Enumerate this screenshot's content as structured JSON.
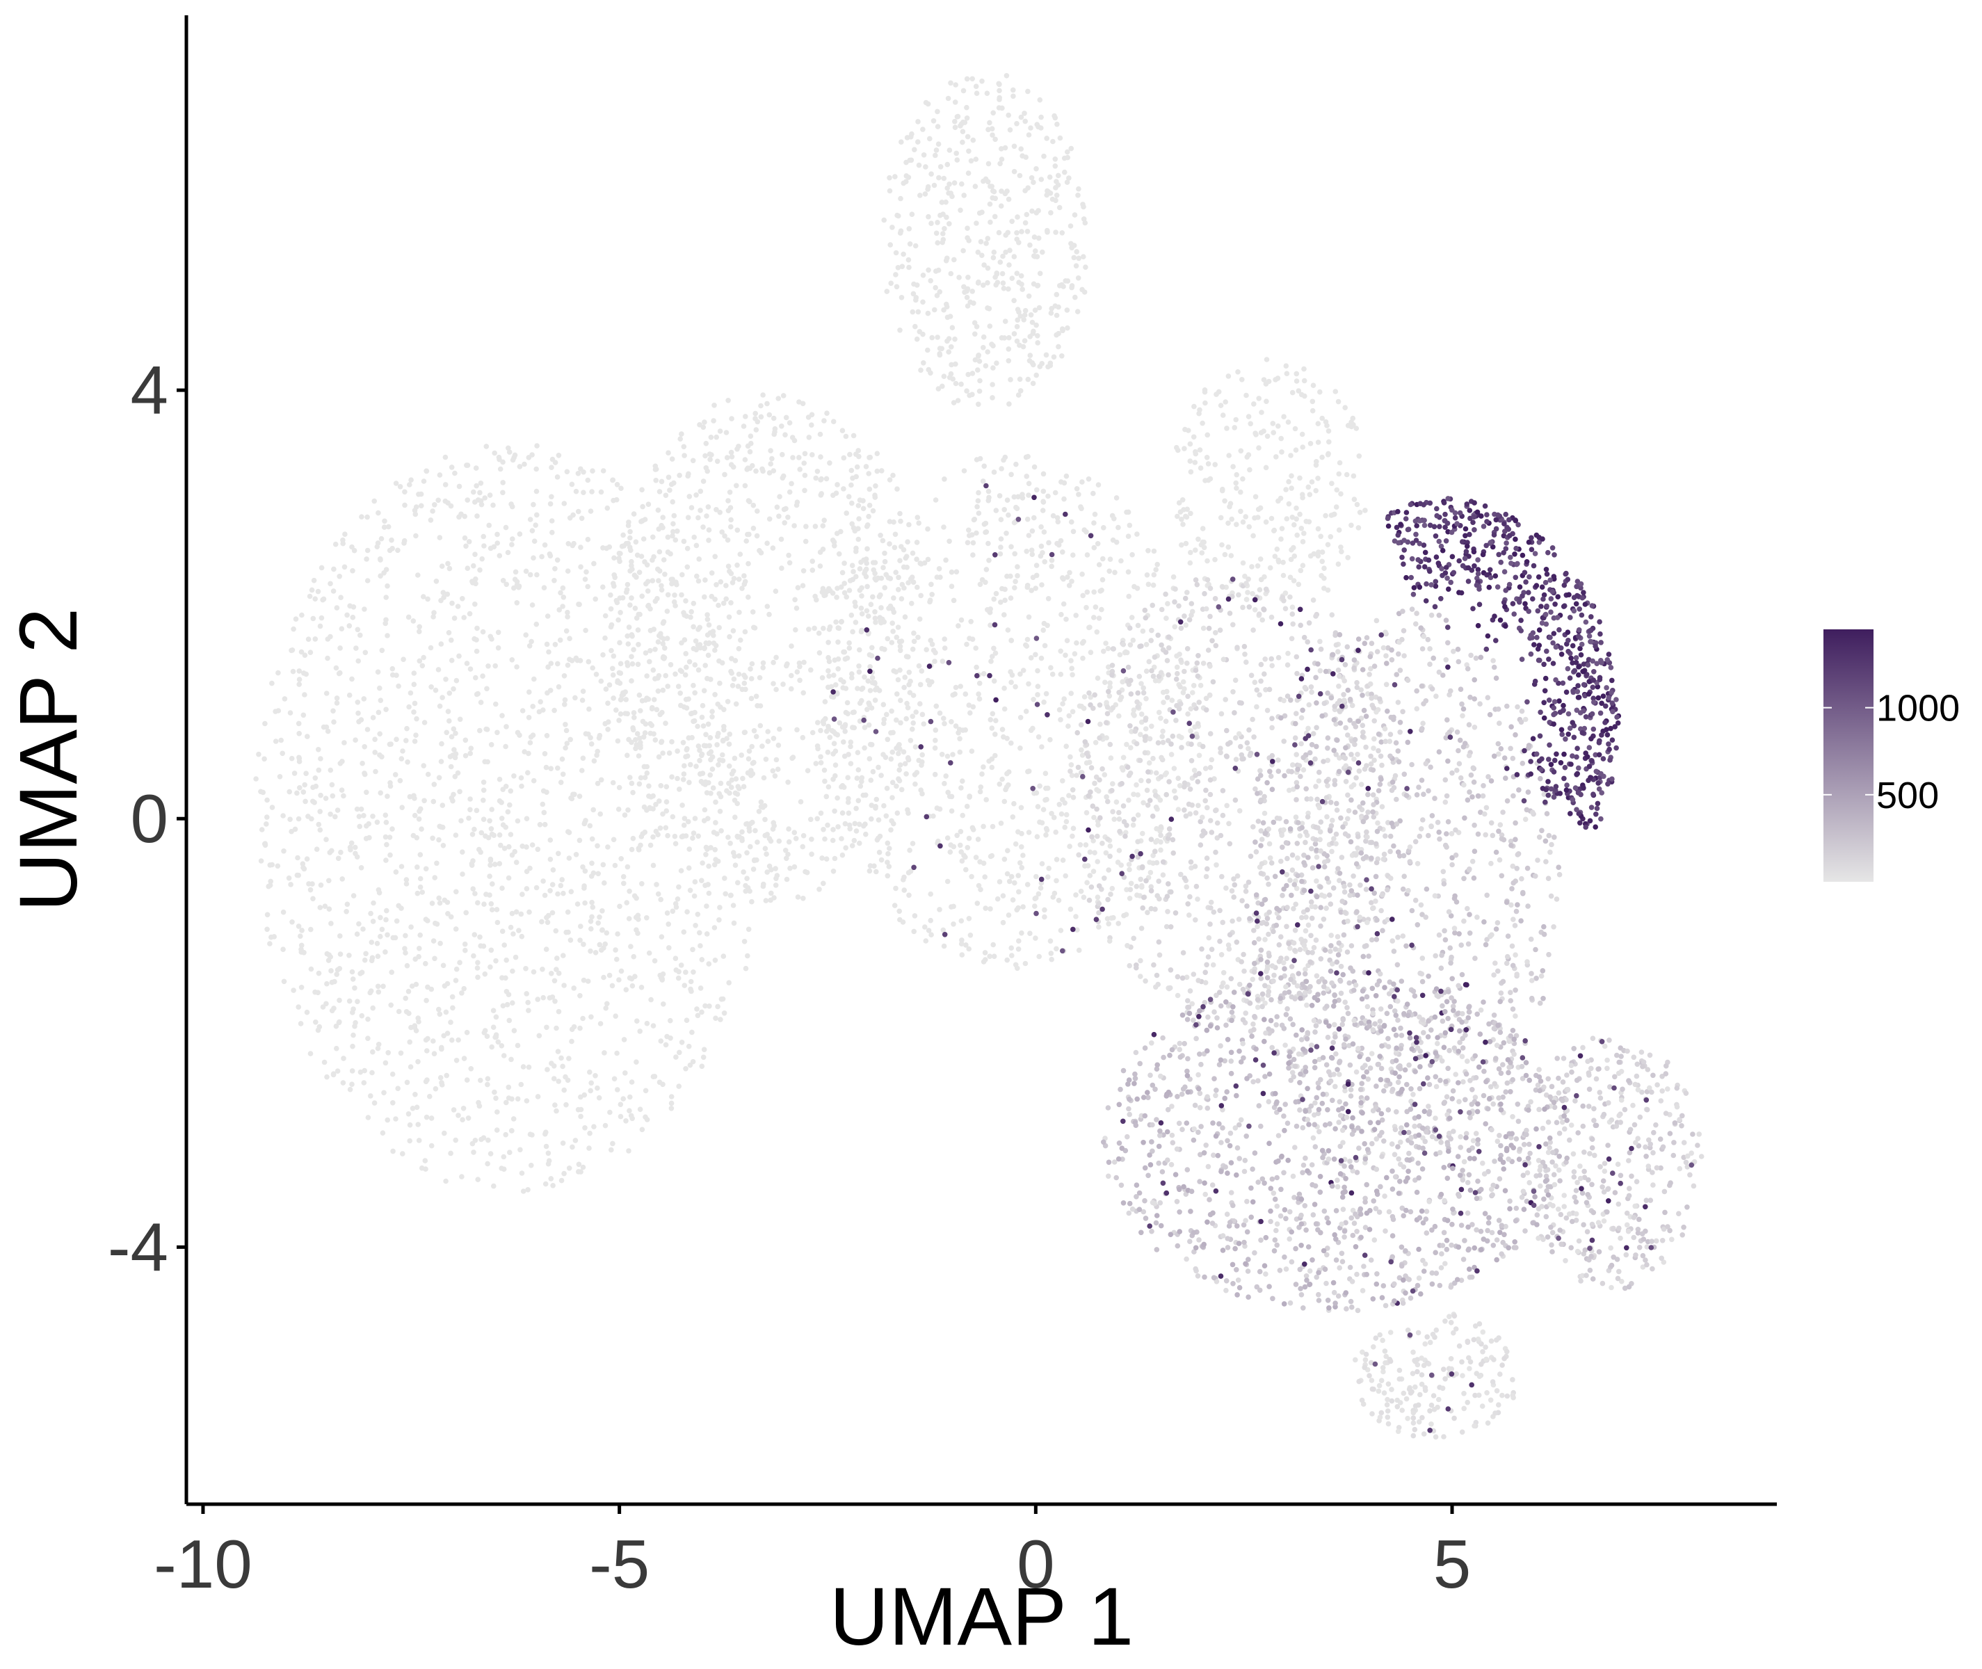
{
  "chart_data": {
    "type": "scatter",
    "title": "",
    "xlabel": "UMAP 1",
    "ylabel": "UMAP 2",
    "xlim": [
      -10.2,
      8.9
    ],
    "ylim": [
      -6.4,
      7.5
    ],
    "x_ticks": [
      {
        "value": -10,
        "label": "-10"
      },
      {
        "value": -5,
        "label": "-5"
      },
      {
        "value": 0,
        "label": "0"
      },
      {
        "value": 5,
        "label": "5"
      }
    ],
    "y_ticks": [
      {
        "value": -4,
        "label": "-4"
      },
      {
        "value": 0,
        "label": "0"
      },
      {
        "value": 4,
        "label": "4"
      }
    ],
    "grid": false,
    "legend_position": "right",
    "color_scale": {
      "low_color": "#e6e6e6",
      "high_color": "#3f1e5e",
      "min": 0,
      "max": 1450,
      "ticks": [
        {
          "value": 500,
          "label": "500"
        },
        {
          "value": 1000,
          "label": "1000"
        }
      ]
    },
    "clusters": [
      {
        "shape": "ellipse",
        "cx": -6.3,
        "cy": 0.0,
        "rx": 3.1,
        "ry": 3.5,
        "n": 1700,
        "expression": 0
      },
      {
        "shape": "ellipse",
        "cx": -3.2,
        "cy": 1.6,
        "rx": 2.0,
        "ry": 2.4,
        "n": 900,
        "expression": 0
      },
      {
        "shape": "ellipse",
        "cx": -0.6,
        "cy": 5.4,
        "rx": 1.25,
        "ry": 1.6,
        "n": 480,
        "expression": 0
      },
      {
        "shape": "ellipse",
        "cx": -0.3,
        "cy": 1.0,
        "rx": 2.3,
        "ry": 2.4,
        "n": 1000,
        "expression": 5
      },
      {
        "shape": "ellipse",
        "cx": 2.8,
        "cy": 3.1,
        "rx": 1.2,
        "ry": 1.2,
        "n": 280,
        "expression": 0
      },
      {
        "shape": "ellipse",
        "cx": 2.4,
        "cy": 0.2,
        "rx": 2.0,
        "ry": 2.1,
        "n": 900,
        "expression": 80
      },
      {
        "shape": "ellipse",
        "cx": 4.4,
        "cy": -0.6,
        "rx": 1.9,
        "ry": 2.6,
        "n": 1000,
        "expression": 170
      },
      {
        "shape": "ellipse",
        "cx": 3.6,
        "cy": -3.0,
        "rx": 2.8,
        "ry": 1.6,
        "n": 1300,
        "expression": 230
      },
      {
        "shape": "ellipse",
        "cx": 6.9,
        "cy": -3.2,
        "rx": 1.1,
        "ry": 1.2,
        "n": 420,
        "expression": 140
      },
      {
        "shape": "ellipse",
        "cx": 4.8,
        "cy": -5.2,
        "rx": 1.0,
        "ry": 0.6,
        "n": 200,
        "expression": 40
      },
      {
        "shape": "crescent",
        "cx": 4.9,
        "cy": 0.9,
        "r_inner": 0.9,
        "r_outer": 2.1,
        "angle_start": -30,
        "angle_end": 110,
        "n": 650,
        "expression": 1350
      }
    ]
  }
}
